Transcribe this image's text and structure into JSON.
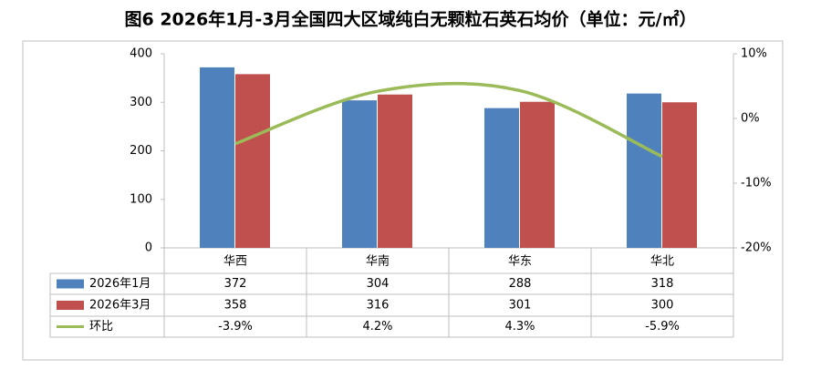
{
  "chart_data": {
    "type": "bar_line_table",
    "title": "图6 2026年1月-3月全国四大区域纯白无颗粒石英石均价（单位：元/㎡）",
    "categories": [
      "华西",
      "华南",
      "华东",
      "华北"
    ],
    "series": [
      {
        "name": "2026年1月",
        "color": "#4f81bd",
        "type": "bar",
        "values": [
          372,
          304,
          288,
          318
        ]
      },
      {
        "name": "2026年3月",
        "color": "#c0504d",
        "type": "bar",
        "values": [
          358,
          316,
          301,
          300
        ]
      },
      {
        "name": "环比",
        "color": "#9bbb59",
        "type": "line",
        "axis": "y2",
        "values": [
          -3.9,
          4.2,
          4.3,
          -5.9
        ],
        "value_labels": [
          "-3.9%",
          "4.2%",
          "4.3%",
          "-5.9%"
        ]
      }
    ],
    "ylim": [
      0,
      400
    ],
    "yticks": [
      0,
      100,
      200,
      300,
      400
    ],
    "y2lim": [
      -20,
      10
    ],
    "y2ticks": [
      {
        "value": -20,
        "label": "-20%"
      },
      {
        "value": -10,
        "label": "-10%"
      },
      {
        "value": 0,
        "label": "0%"
      },
      {
        "value": 10,
        "label": "10%"
      }
    ]
  }
}
